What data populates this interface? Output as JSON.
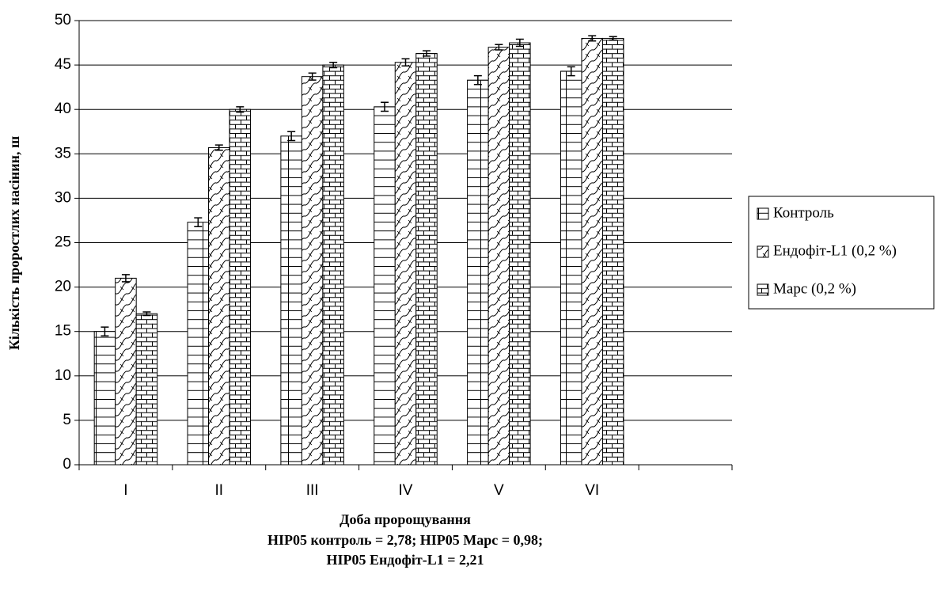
{
  "chart_data": {
    "type": "bar",
    "ylabel": "Кількість проростлих насінин, ш",
    "xlabel": "Доба пророщування",
    "notes": [
      "НІР05 контроль = 2,78; НІР05 Марс = 0,98;",
      "НІР05 Ендофіт-L1 = 2,21"
    ],
    "categories": [
      "I",
      "II",
      "III",
      "IV",
      "V",
      "VI",
      null
    ],
    "series": [
      {
        "name": "Контроль",
        "color": "#ffffff",
        "pattern": "grid",
        "values": [
          15,
          27.3,
          37,
          40.3,
          43.3,
          44.3,
          null
        ],
        "errors": [
          0.5,
          0.5,
          0.5,
          0.5,
          0.5,
          0.5,
          null
        ]
      },
      {
        "name": "Ендофіт-L1 (0,2 %)",
        "color": "#ffffff",
        "pattern": "wave",
        "values": [
          21,
          35.7,
          43.7,
          45.3,
          47,
          48,
          null
        ],
        "errors": [
          0.4,
          0.3,
          0.4,
          0.4,
          0.3,
          0.3,
          null
        ]
      },
      {
        "name": "Марс (0,2 %)",
        "color": "#ffffff",
        "pattern": "brick",
        "values": [
          17,
          40,
          45,
          46.3,
          47.5,
          48,
          null
        ],
        "errors": [
          0.2,
          0.3,
          0.3,
          0.3,
          0.4,
          0.2,
          null
        ]
      }
    ],
    "ylim": [
      0,
      50
    ],
    "yticks": [
      0,
      5,
      10,
      15,
      20,
      25,
      30,
      35,
      40,
      45,
      50
    ],
    "grid": true,
    "legend": "right"
  }
}
